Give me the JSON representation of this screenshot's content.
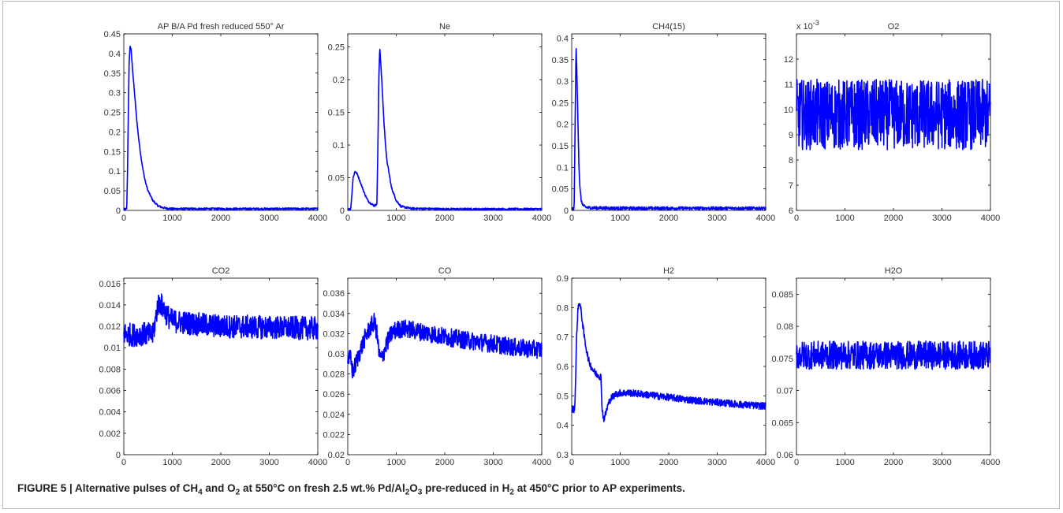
{
  "caption": {
    "label": "FIGURE 5 |",
    "parts": [
      {
        "t": " Alternative pulses of CH"
      },
      {
        "t": "4",
        "sub": true
      },
      {
        "t": " and O"
      },
      {
        "t": "2",
        "sub": true
      },
      {
        "t": " at 550°C on fresh 2.5 wt.% Pd/Al"
      },
      {
        "t": "2",
        "sub": true
      },
      {
        "t": "O"
      },
      {
        "t": "3",
        "sub": true
      },
      {
        "t": " pre-reduced in H"
      },
      {
        "t": "2",
        "sub": true
      },
      {
        "t": " at 450°C prior to AP experiments."
      }
    ]
  },
  "colors": {
    "line": "#0000ff",
    "axes": "#000000",
    "text": "#333333"
  },
  "chart_data": [
    {
      "type": "line",
      "title": "AP B/A Pd fresh reduced 550° Ar",
      "xlim": [
        0,
        4000
      ],
      "ylim": [
        0,
        0.45
      ],
      "xticks": [
        0,
        1000,
        2000,
        3000,
        4000
      ],
      "yticks": [
        0,
        0.05,
        0.1,
        0.15,
        0.2,
        0.25,
        0.3,
        0.35,
        0.4,
        0.45
      ],
      "ytick_labels": [
        "0",
        "0.05",
        "0.1",
        "0.15",
        "0.2",
        "0.25",
        "0.3",
        "0.35",
        "0.4",
        "0.45"
      ],
      "series": [
        {
          "x": [
            0,
            60,
            75,
            90,
            110,
            130,
            150,
            180,
            220,
            260,
            300,
            350,
            400,
            450,
            500,
            600,
            700,
            800,
            900,
            1000,
            2000,
            3000,
            4000
          ],
          "y": [
            0.003,
            0.003,
            0.09,
            0.22,
            0.38,
            0.42,
            0.41,
            0.36,
            0.3,
            0.24,
            0.19,
            0.14,
            0.1,
            0.07,
            0.05,
            0.025,
            0.012,
            0.007,
            0.005,
            0.004,
            0.004,
            0.004,
            0.004
          ],
          "noise": 0.0025
        }
      ]
    },
    {
      "type": "line",
      "title": "Ne",
      "xlim": [
        0,
        4000
      ],
      "ylim": [
        0,
        0.27
      ],
      "xticks": [
        0,
        1000,
        2000,
        3000,
        4000
      ],
      "yticks": [
        0,
        0.05,
        0.1,
        0.15,
        0.2,
        0.25
      ],
      "ytick_labels": [
        "0",
        "0.05",
        "0.1",
        "0.15",
        "0.2",
        "0.25"
      ],
      "series": [
        {
          "x": [
            0,
            60,
            80,
            110,
            150,
            200,
            250,
            300,
            350,
            400,
            450,
            550,
            600,
            620,
            640,
            660,
            700,
            750,
            800,
            900,
            1000,
            1100,
            1300,
            2000,
            3000,
            4000
          ],
          "y": [
            0.002,
            0.002,
            0.02,
            0.05,
            0.06,
            0.055,
            0.045,
            0.035,
            0.025,
            0.017,
            0.012,
            0.007,
            0.01,
            0.09,
            0.2,
            0.25,
            0.2,
            0.13,
            0.08,
            0.035,
            0.015,
            0.006,
            0.003,
            0.002,
            0.002,
            0.002
          ],
          "noise": 0.0015
        }
      ]
    },
    {
      "type": "line",
      "title": "CH4(15)",
      "xlim": [
        0,
        4000
      ],
      "ylim": [
        0,
        0.41
      ],
      "xticks": [
        0,
        1000,
        2000,
        3000,
        4000
      ],
      "yticks": [
        0,
        0.05,
        0.1,
        0.15,
        0.2,
        0.25,
        0.3,
        0.35,
        0.4
      ],
      "ytick_labels": [
        "0",
        "0.05",
        "0.1",
        "0.15",
        "0.2",
        "0.25",
        "0.3",
        "0.35",
        "0.4"
      ],
      "series": [
        {
          "x": [
            0,
            50,
            70,
            90,
            110,
            130,
            150,
            170,
            200,
            250,
            300,
            400,
            1000,
            2000,
            3000,
            4000
          ],
          "y": [
            0.004,
            0.004,
            0.2,
            0.385,
            0.3,
            0.2,
            0.1,
            0.05,
            0.02,
            0.01,
            0.007,
            0.006,
            0.005,
            0.005,
            0.005,
            0.005
          ],
          "noise": 0.0035
        }
      ]
    },
    {
      "type": "line",
      "title": "O2",
      "exponent_label": "x 10",
      "exponent_power": "-3",
      "xlim": [
        0,
        4000
      ],
      "ylim": [
        6,
        13
      ],
      "xticks": [
        0,
        1000,
        2000,
        3000,
        4000
      ],
      "yticks": [
        6,
        7,
        8,
        9,
        10,
        11,
        12
      ],
      "ytick_labels": [
        "6",
        "7",
        "8",
        "9",
        "10",
        "11",
        "12"
      ],
      "series": [
        {
          "x": [
            0,
            4000
          ],
          "y": [
            9.8,
            9.8
          ],
          "noise": 1.4
        }
      ]
    },
    {
      "type": "line",
      "title": "CO2",
      "xlim": [
        0,
        4000
      ],
      "ylim": [
        0,
        0.0165
      ],
      "xticks": [
        0,
        1000,
        2000,
        3000,
        4000
      ],
      "yticks": [
        0,
        0.002,
        0.004,
        0.006,
        0.008,
        0.01,
        0.012,
        0.014,
        0.016
      ],
      "ytick_labels": [
        "0",
        "0.002",
        "0.004",
        "0.006",
        "0.008",
        "0.01",
        "0.012",
        "0.014",
        "0.016"
      ],
      "series": [
        {
          "x": [
            0,
            200,
            400,
            600,
            650,
            700,
            750,
            800,
            900,
            1000,
            1500,
            2000,
            3000,
            4000
          ],
          "y": [
            0.0113,
            0.0112,
            0.0113,
            0.0112,
            0.0125,
            0.014,
            0.0142,
            0.0138,
            0.013,
            0.0125,
            0.0122,
            0.012,
            0.0119,
            0.0118
          ],
          "noise": 0.0011
        }
      ]
    },
    {
      "type": "line",
      "title": "CO",
      "xlim": [
        0,
        4000
      ],
      "ylim": [
        0.02,
        0.0375
      ],
      "xticks": [
        0,
        1000,
        2000,
        3000,
        4000
      ],
      "yticks": [
        0.02,
        0.022,
        0.024,
        0.026,
        0.028,
        0.03,
        0.032,
        0.034,
        0.036
      ],
      "ytick_labels": [
        "0.02",
        "0.022",
        "0.024",
        "0.026",
        "0.028",
        "0.03",
        "0.032",
        "0.034",
        "0.036"
      ],
      "series": [
        {
          "x": [
            0,
            60,
            100,
            150,
            250,
            350,
            450,
            550,
            600,
            650,
            700,
            800,
            900,
            1000,
            1200,
            1500,
            2000,
            2500,
            3000,
            3500,
            4000
          ],
          "y": [
            0.0295,
            0.0295,
            0.0282,
            0.0288,
            0.0302,
            0.0315,
            0.0325,
            0.0332,
            0.032,
            0.0298,
            0.0295,
            0.031,
            0.032,
            0.0324,
            0.0325,
            0.0322,
            0.0317,
            0.0313,
            0.031,
            0.0306,
            0.0304
          ],
          "noise": 0.0009
        }
      ]
    },
    {
      "type": "line",
      "title": "H2",
      "xlim": [
        0,
        4000
      ],
      "ylim": [
        0.3,
        0.9
      ],
      "xticks": [
        0,
        1000,
        2000,
        3000,
        4000
      ],
      "yticks": [
        0.3,
        0.4,
        0.5,
        0.6,
        0.7,
        0.8,
        0.9
      ],
      "ytick_labels": [
        "0.3",
        "0.4",
        "0.5",
        "0.6",
        "0.7",
        "0.8",
        "0.9"
      ],
      "series": [
        {
          "x": [
            0,
            60,
            80,
            100,
            130,
            160,
            200,
            250,
            300,
            350,
            400,
            450,
            500,
            550,
            600,
            630,
            660,
            700,
            750,
            800,
            900,
            1000,
            1200,
            1500,
            2000,
            2500,
            3000,
            3500,
            4000
          ],
          "y": [
            0.455,
            0.455,
            0.55,
            0.7,
            0.8,
            0.82,
            0.78,
            0.71,
            0.66,
            0.62,
            0.6,
            0.585,
            0.575,
            0.57,
            0.565,
            0.45,
            0.42,
            0.44,
            0.47,
            0.49,
            0.505,
            0.51,
            0.51,
            0.505,
            0.495,
            0.485,
            0.478,
            0.47,
            0.465
          ],
          "noise": 0.012
        }
      ]
    },
    {
      "type": "line",
      "title": "H2O",
      "xlim": [
        0,
        4000
      ],
      "ylim": [
        0.06,
        0.0875
      ],
      "xticks": [
        0,
        1000,
        2000,
        3000,
        4000
      ],
      "yticks": [
        0.06,
        0.065,
        0.07,
        0.075,
        0.08,
        0.085
      ],
      "ytick_labels": [
        "0.06",
        "0.065",
        "0.07",
        "0.075",
        "0.08",
        "0.085"
      ],
      "series": [
        {
          "x": [
            0,
            4000
          ],
          "y": [
            0.0755,
            0.0755
          ],
          "noise": 0.0022
        }
      ]
    }
  ]
}
